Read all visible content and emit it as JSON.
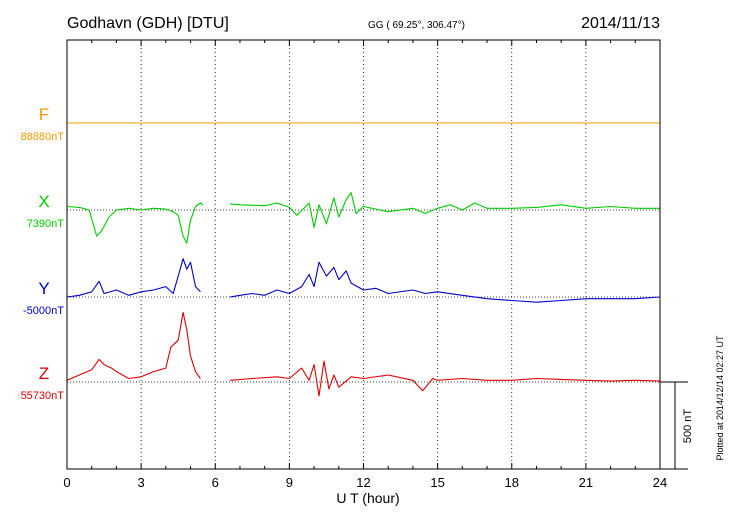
{
  "header": {
    "title": "Godhavn (GDH)  [DTU]",
    "coords": "GG ( 69.25°, 306.47°)",
    "date": "2014/11/13"
  },
  "footer": {
    "plotted": "Plotted at 2014/12/14 02:27 UT",
    "scale_label": "500 nT"
  },
  "chart_data": {
    "type": "line",
    "xlabel": "U T (hour)",
    "ylabel": "",
    "xlim": [
      0,
      24
    ],
    "xticks": [
      0,
      3,
      6,
      9,
      12,
      15,
      18,
      21,
      24
    ],
    "xtick_labels": [
      "0",
      "3",
      "6",
      "9",
      "12",
      "15",
      "18",
      "21",
      "24"
    ],
    "grid": "vertical dotted every 3 hours",
    "scale_bar_nT": 500,
    "nt_per_division": 500,
    "series": [
      {
        "name": "F",
        "baseline_label": "88880nT",
        "baseline_nT": 88880,
        "color": "#ff9900",
        "points": [
          [
            0,
            0
          ],
          [
            6,
            0
          ],
          [
            12,
            0
          ],
          [
            18,
            0
          ],
          [
            24,
            0
          ]
        ]
      },
      {
        "name": "X",
        "baseline_label": "7390nT",
        "baseline_nT": 7390,
        "color": "#00cc00",
        "points": [
          [
            0,
            20
          ],
          [
            0.5,
            15
          ],
          [
            0.9,
            0
          ],
          [
            1.2,
            -150
          ],
          [
            1.4,
            -120
          ],
          [
            1.7,
            -40
          ],
          [
            2.0,
            0
          ],
          [
            2.5,
            10
          ],
          [
            3.0,
            0
          ],
          [
            3.5,
            10
          ],
          [
            4.0,
            5
          ],
          [
            4.3,
            -10
          ],
          [
            4.5,
            -30
          ],
          [
            4.7,
            -150
          ],
          [
            4.85,
            -190
          ],
          [
            5.0,
            -60
          ],
          [
            5.2,
            20
          ],
          [
            5.4,
            40
          ],
          [
            5.5,
            30
          ],
          [
            null,
            null
          ],
          [
            6.6,
            35
          ],
          [
            7.0,
            30
          ],
          [
            8.0,
            25
          ],
          [
            8.5,
            40
          ],
          [
            9.0,
            15
          ],
          [
            9.3,
            -30
          ],
          [
            9.8,
            40
          ],
          [
            10.0,
            -100
          ],
          [
            10.2,
            30
          ],
          [
            10.5,
            -80
          ],
          [
            10.8,
            70
          ],
          [
            11.0,
            -40
          ],
          [
            11.3,
            60
          ],
          [
            11.5,
            100
          ],
          [
            11.7,
            -20
          ],
          [
            12.0,
            20
          ],
          [
            13.0,
            -10
          ],
          [
            14.0,
            10
          ],
          [
            14.5,
            -20
          ],
          [
            15.0,
            10
          ],
          [
            15.5,
            30
          ],
          [
            16.0,
            0
          ],
          [
            16.5,
            40
          ],
          [
            17.0,
            10
          ],
          [
            18.0,
            10
          ],
          [
            19.0,
            15
          ],
          [
            20.0,
            30
          ],
          [
            21.0,
            10
          ],
          [
            22.0,
            20
          ],
          [
            23.0,
            10
          ],
          [
            24.0,
            10
          ]
        ]
      },
      {
        "name": "Y",
        "baseline_label": "-5000nT",
        "baseline_nT": -5000,
        "color": "#0000cc",
        "points": [
          [
            0,
            0
          ],
          [
            0.5,
            10
          ],
          [
            1.0,
            30
          ],
          [
            1.3,
            90
          ],
          [
            1.5,
            20
          ],
          [
            2.0,
            40
          ],
          [
            2.5,
            10
          ],
          [
            3.0,
            30
          ],
          [
            3.5,
            40
          ],
          [
            4.0,
            60
          ],
          [
            4.3,
            20
          ],
          [
            4.5,
            120
          ],
          [
            4.7,
            220
          ],
          [
            4.85,
            160
          ],
          [
            5.0,
            200
          ],
          [
            5.2,
            60
          ],
          [
            5.4,
            30
          ],
          [
            null,
            null
          ],
          [
            6.6,
            0
          ],
          [
            7.0,
            10
          ],
          [
            7.5,
            20
          ],
          [
            8.0,
            10
          ],
          [
            8.5,
            40
          ],
          [
            9.0,
            20
          ],
          [
            9.5,
            60
          ],
          [
            9.8,
            130
          ],
          [
            10.0,
            60
          ],
          [
            10.2,
            200
          ],
          [
            10.5,
            120
          ],
          [
            10.8,
            170
          ],
          [
            11.0,
            100
          ],
          [
            11.3,
            150
          ],
          [
            11.5,
            80
          ],
          [
            12.0,
            40
          ],
          [
            12.5,
            50
          ],
          [
            13.0,
            20
          ],
          [
            14.0,
            40
          ],
          [
            14.5,
            20
          ],
          [
            15.0,
            30
          ],
          [
            16.0,
            10
          ],
          [
            17.0,
            -10
          ],
          [
            18.0,
            -20
          ],
          [
            19.0,
            -30
          ],
          [
            20.0,
            -20
          ],
          [
            21.0,
            -10
          ],
          [
            22.0,
            -10
          ],
          [
            23.0,
            -10
          ],
          [
            24.0,
            0
          ]
        ]
      },
      {
        "name": "Z",
        "baseline_label": "55730nT",
        "baseline_nT": 55730,
        "color": "#dd0000",
        "points": [
          [
            0,
            10
          ],
          [
            0.5,
            40
          ],
          [
            1.0,
            70
          ],
          [
            1.3,
            130
          ],
          [
            1.5,
            100
          ],
          [
            1.8,
            80
          ],
          [
            2.0,
            60
          ],
          [
            2.5,
            20
          ],
          [
            3.0,
            30
          ],
          [
            3.5,
            60
          ],
          [
            4.0,
            80
          ],
          [
            4.2,
            200
          ],
          [
            4.5,
            240
          ],
          [
            4.7,
            400
          ],
          [
            4.85,
            300
          ],
          [
            5.0,
            150
          ],
          [
            5.2,
            60
          ],
          [
            5.4,
            20
          ],
          [
            null,
            null
          ],
          [
            6.6,
            10
          ],
          [
            7.5,
            20
          ],
          [
            8.5,
            30
          ],
          [
            9.0,
            20
          ],
          [
            9.5,
            80
          ],
          [
            9.8,
            10
          ],
          [
            10.0,
            100
          ],
          [
            10.2,
            -80
          ],
          [
            10.4,
            120
          ],
          [
            10.6,
            -40
          ],
          [
            10.8,
            40
          ],
          [
            11.0,
            -30
          ],
          [
            11.5,
            30
          ],
          [
            12.0,
            20
          ],
          [
            13.0,
            40
          ],
          [
            14.0,
            10
          ],
          [
            14.4,
            -50
          ],
          [
            14.8,
            20
          ],
          [
            15.0,
            10
          ],
          [
            16.0,
            20
          ],
          [
            17.0,
            10
          ],
          [
            18.0,
            10
          ],
          [
            19.0,
            20
          ],
          [
            20.0,
            15
          ],
          [
            21.0,
            10
          ],
          [
            22.0,
            5
          ],
          [
            23.0,
            10
          ],
          [
            24.0,
            5
          ]
        ]
      }
    ]
  }
}
